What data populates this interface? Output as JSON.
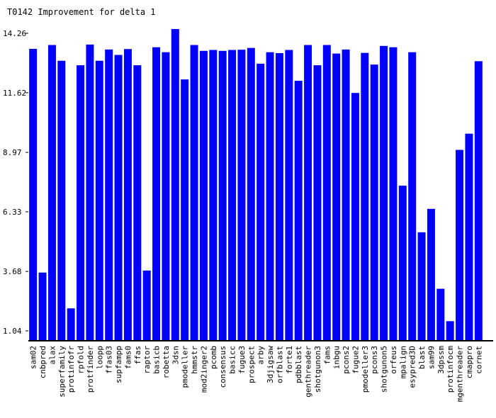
{
  "chart_data": {
    "type": "bar",
    "title": "T0142 Improvement for delta 1",
    "xlabel": "",
    "ylabel": "",
    "yticks": [
      1.04,
      3.68,
      6.33,
      8.97,
      11.62,
      14.26
    ],
    "ytick_labels": [
      "1.04",
      "3.68",
      "6.33",
      "8.97",
      "11.62",
      "14.26"
    ],
    "ylim": [
      0.6,
      14.5
    ],
    "bar_color": "#0000ff",
    "grid": false,
    "legend": "none",
    "categories": [
      "sam02",
      "cnbpred",
      "alax",
      "superfamily",
      "protinfofr",
      "rpfold",
      "protfinder",
      "loopp",
      "ffas03",
      "supfampp",
      "fams0",
      "ffas",
      "raptor",
      "basicb",
      "robetta",
      "3dsn",
      "pmodeller",
      "hmmstr",
      "mod2inger2",
      "pcomb",
      "consensus",
      "basicc",
      "fugue3",
      "prospect",
      "arby",
      "3djigsaw",
      "orfblast",
      "forte1",
      "pdbblast",
      "genthreader",
      "shotgunon3",
      "fams",
      "inbgu",
      "pcons2",
      "fugue2",
      "pmodeller3",
      "pcons3",
      "shotgunon5",
      "orfeus",
      "mpalign",
      "esypred3D",
      "blast",
      "sam99",
      "3dpssm",
      "protinfocm",
      "mgenthreader",
      "cmappro",
      "cornet"
    ],
    "values": [
      13.57,
      3.63,
      13.74,
      13.04,
      2.04,
      12.84,
      13.76,
      13.04,
      13.54,
      13.3,
      13.56,
      12.84,
      3.72,
      13.64,
      13.42,
      14.45,
      12.21,
      13.74,
      13.48,
      13.52,
      13.48,
      13.52,
      13.53,
      13.61,
      12.91,
      13.42,
      13.38,
      13.52,
      12.15,
      13.74,
      12.84,
      13.74,
      13.36,
      13.54,
      11.61,
      13.39,
      12.87,
      13.7,
      13.64,
      7.49,
      13.42,
      5.42,
      6.46,
      2.91,
      1.47,
      9.08,
      9.8,
      13.02
    ]
  }
}
